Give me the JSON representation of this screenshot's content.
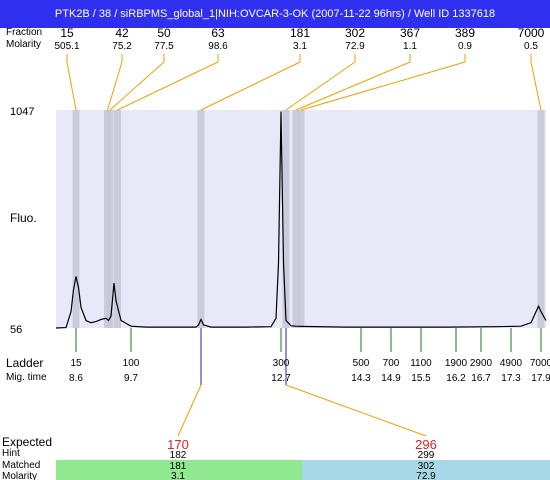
{
  "header": {
    "title": "PTK2B / 38 / siRBPMS_global_1|NIH:OVCAR-3-OK (2007-11-22 96hrs) / Well ID 1337618",
    "row_labels": [
      "Fraction",
      "Molarity"
    ]
  },
  "peaks": {
    "sizes": [
      "15",
      "42",
      "50",
      "63",
      "181",
      "302",
      "367",
      "389",
      "7000"
    ],
    "molarity": [
      "505.1",
      "75.2",
      "77.5",
      "98.6",
      "3.1",
      "72.9",
      "1.1",
      "0.9",
      "0.5"
    ],
    "x_time": [
      8.6,
      9.23,
      9.28,
      9.43,
      11.1,
      12.8,
      13.0,
      13.1,
      17.9
    ]
  },
  "y_axis": {
    "label": "Fluo.",
    "max_label": "1047",
    "min_label": "56"
  },
  "ladder": {
    "row_label": "Ladder",
    "time_label": "Mig. time",
    "sizes": [
      "15",
      "100",
      "300",
      "500",
      "700",
      "1100",
      "1900",
      "2900",
      "4900",
      "7000"
    ],
    "times": [
      "8.6",
      "9.7",
      "12.7",
      "14.3",
      "14.9",
      "15.5",
      "16.2",
      "16.7",
      "17.3",
      "17.9"
    ]
  },
  "expected": {
    "row_labels": [
      "Expected",
      "Hint",
      "Matched",
      "Molarity"
    ],
    "groups": [
      {
        "expected": "170",
        "hint": "182",
        "matched": "181",
        "molarity": "3.1",
        "color": "#90e890"
      },
      {
        "expected": "296",
        "hint": "299",
        "matched": "302",
        "molarity": "72.9",
        "color": "#a6d8e8"
      }
    ]
  },
  "colors": {
    "plot_bg": "#e8e8f8",
    "band": "#c8c8d8",
    "trace": "#000000",
    "ladder_tick": "#1a7a1a",
    "connector": "#f0a000",
    "expected_text": "#e02020",
    "title_bg": "#2f2ff0"
  },
  "chart_data": {
    "type": "line",
    "x_unit": "migration time",
    "ylim": [
      56,
      1047
    ],
    "xlim": [
      8.2,
      18.0
    ],
    "series": [
      {
        "x": [
          8.2,
          8.4,
          8.5,
          8.55,
          8.6,
          8.65,
          8.7,
          8.8,
          8.9,
          9.0,
          9.1,
          9.2,
          9.25,
          9.3,
          9.32,
          9.36,
          9.4,
          9.5,
          9.7,
          10.0,
          10.5,
          11.0,
          11.05,
          11.1,
          11.15,
          11.3,
          12.0,
          12.5,
          12.6,
          12.65,
          12.7,
          12.75,
          12.8,
          12.9,
          13.0,
          13.2,
          14.0,
          15.0,
          16.0,
          17.0,
          17.5,
          17.7,
          17.8,
          17.85,
          17.9,
          18.0
        ],
        "y": [
          56,
          58,
          130,
          230,
          290,
          240,
          150,
          90,
          80,
          85,
          95,
          100,
          90,
          110,
          160,
          260,
          180,
          90,
          64,
          60,
          60,
          60,
          70,
          95,
          70,
          60,
          60,
          62,
          100,
          350,
          1040,
          350,
          90,
          66,
          64,
          63,
          60,
          60,
          60,
          62,
          64,
          80,
          130,
          155,
          130,
          90
        ]
      }
    ]
  }
}
